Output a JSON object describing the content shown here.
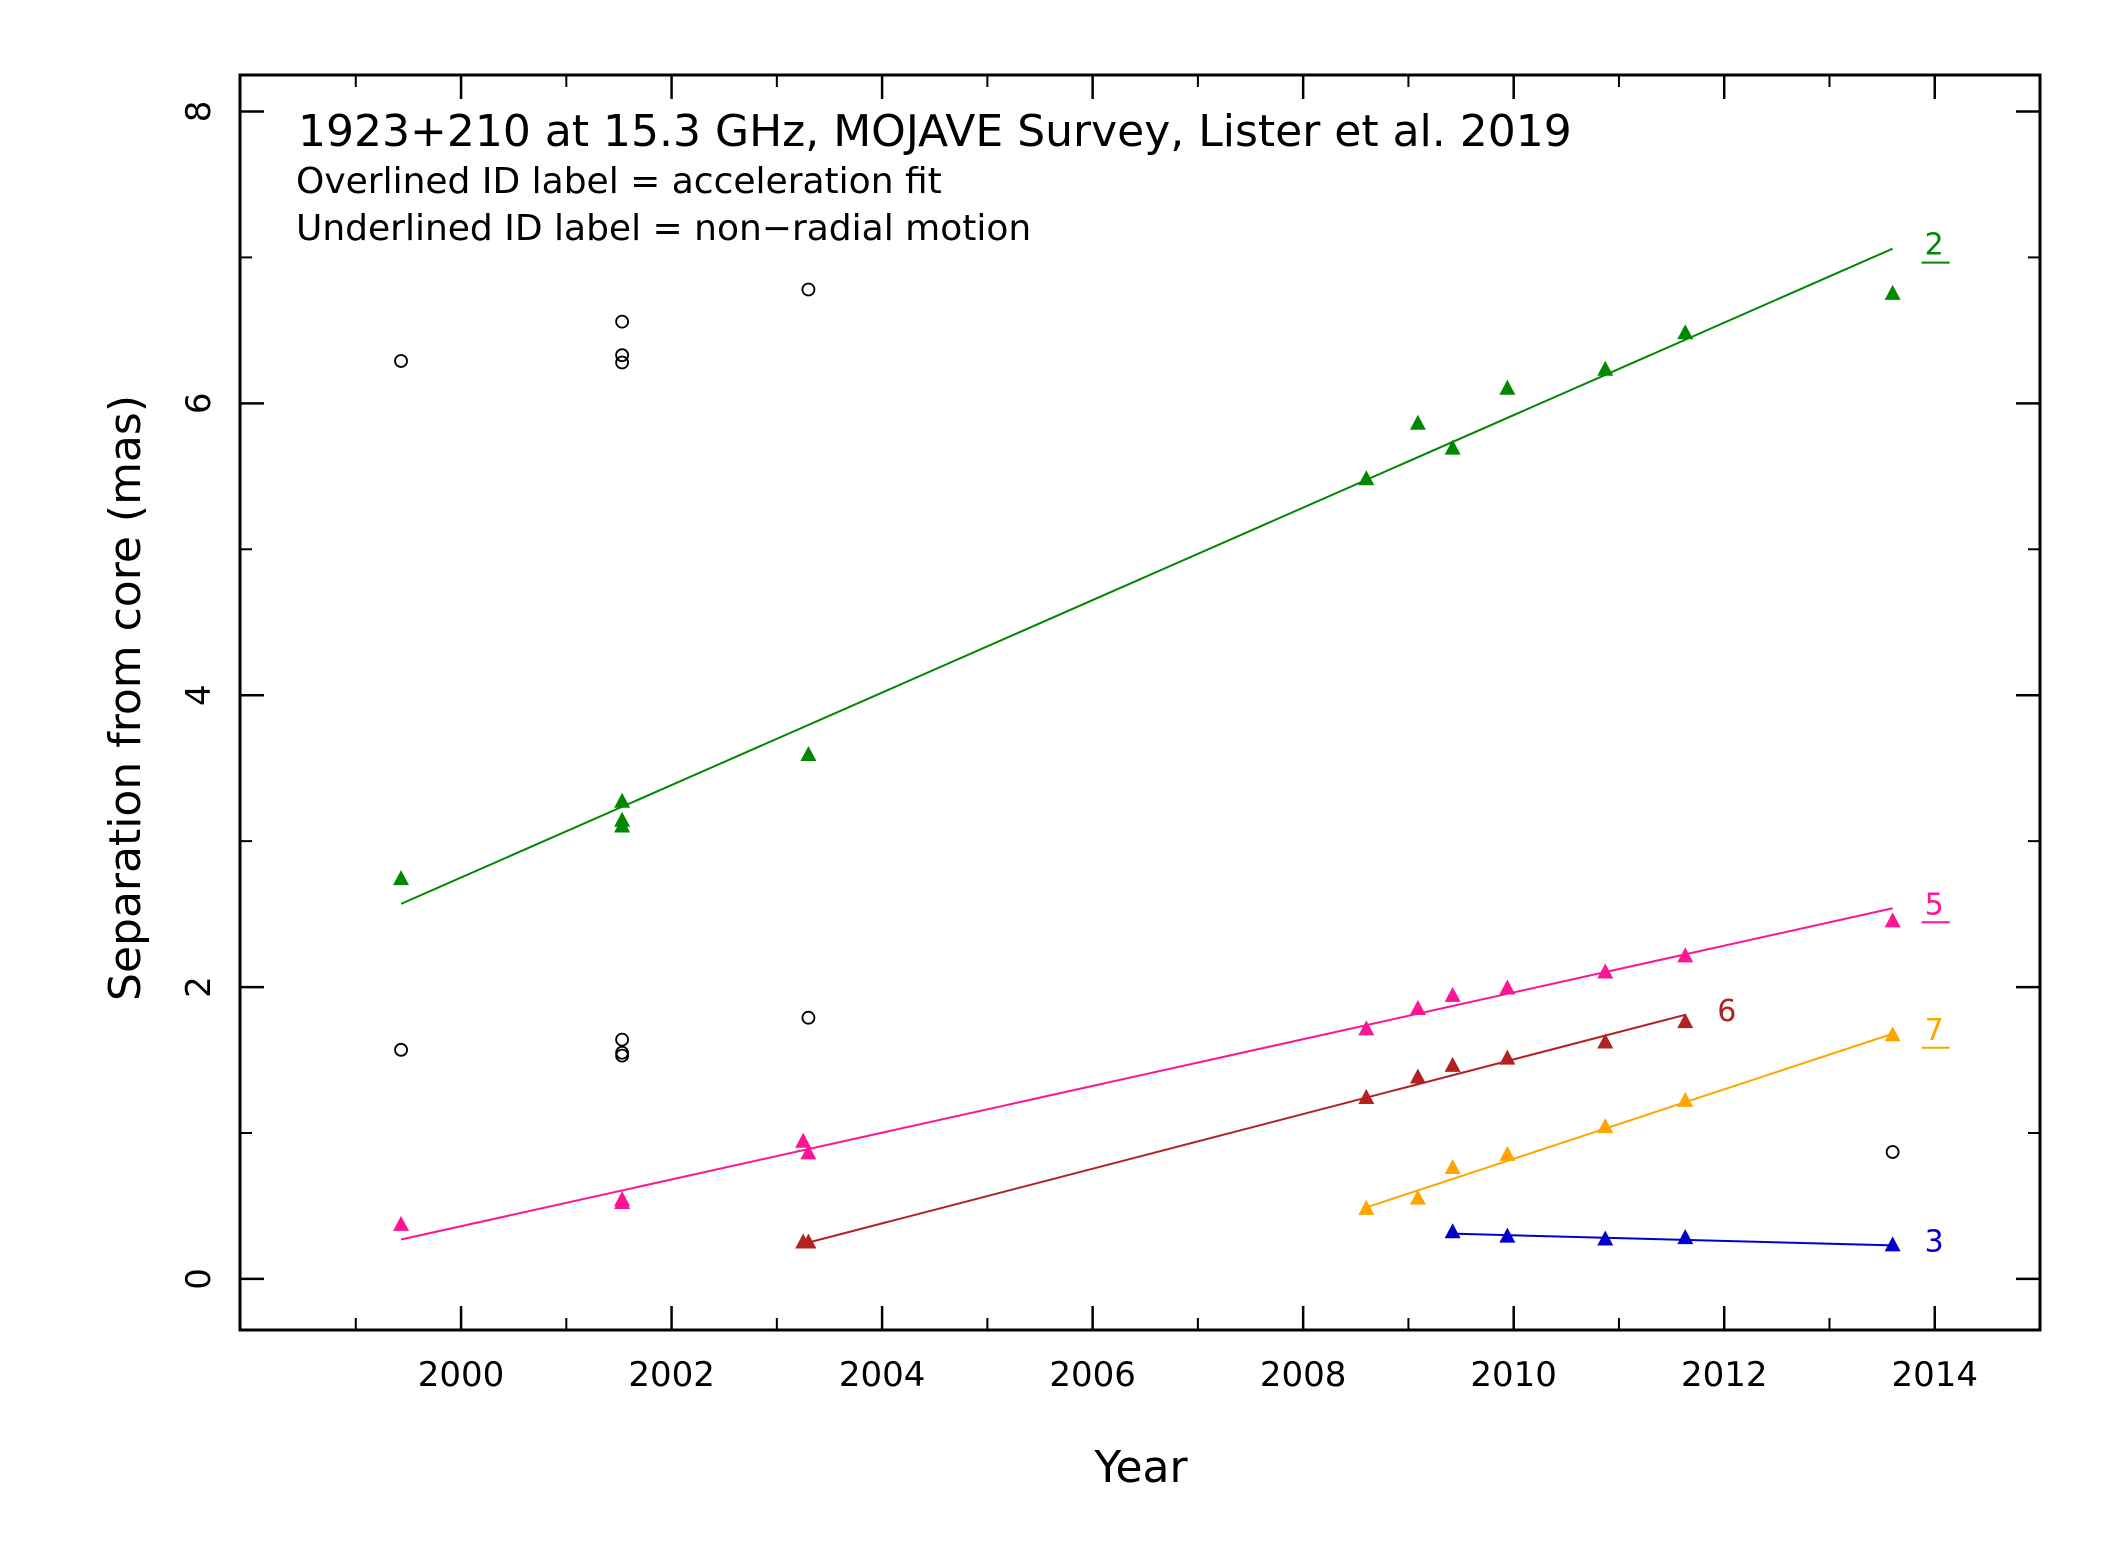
{
  "chart_data": {
    "type": "scatter",
    "title": "1923+210 at 15.3 GHz, MOJAVE Survey, Lister et al. 2019",
    "notes": [
      "Overlined ID label = acceleration fit",
      "Underlined ID label = non−radial motion"
    ],
    "xlabel": "Year",
    "ylabel": "Separation from core (mas)",
    "xlim": [
      1997.9,
      2015.0
    ],
    "ylim": [
      -0.35,
      8.25
    ],
    "x_ticks": [
      2000,
      2002,
      2004,
      2006,
      2008,
      2010,
      2012,
      2014
    ],
    "x_tick_labels": [
      "2000",
      "2002",
      "2004",
      "2006",
      "2008",
      "2010",
      "2012",
      "2014"
    ],
    "y_ticks": [
      0,
      2,
      4,
      6,
      8
    ],
    "y_tick_labels": [
      "0",
      "2",
      "4",
      "6",
      "8"
    ],
    "grid": false,
    "series": [
      {
        "name": "2",
        "label_style": "underline",
        "color": "#008800",
        "marker": "triangle",
        "points": [
          [
            1999.43,
            2.74
          ],
          [
            2001.53,
            3.27
          ],
          [
            2001.53,
            3.14
          ],
          [
            2001.53,
            3.1
          ],
          [
            2003.3,
            3.59
          ],
          [
            2008.6,
            5.48
          ],
          [
            2009.09,
            5.86
          ],
          [
            2009.42,
            5.69
          ],
          [
            2009.94,
            6.1
          ],
          [
            2010.87,
            6.23
          ],
          [
            2011.63,
            6.48
          ],
          [
            2013.6,
            6.75
          ]
        ],
        "fit": [
          [
            1999.43,
            2.57
          ],
          [
            2013.6,
            7.06
          ]
        ]
      },
      {
        "name": "5",
        "label_style": "underline",
        "color": "#ff1493",
        "marker": "triangle",
        "points": [
          [
            1999.43,
            0.37
          ],
          [
            2001.53,
            0.54
          ],
          [
            2001.53,
            0.52
          ],
          [
            2003.25,
            0.94
          ],
          [
            2003.3,
            0.86
          ],
          [
            2008.6,
            1.71
          ],
          [
            2009.09,
            1.85
          ],
          [
            2009.42,
            1.94
          ],
          [
            2009.94,
            1.99
          ],
          [
            2010.87,
            2.1
          ],
          [
            2011.63,
            2.21
          ],
          [
            2013.6,
            2.45
          ]
        ],
        "fit": [
          [
            1999.43,
            0.27
          ],
          [
            2013.6,
            2.54
          ]
        ]
      },
      {
        "name": "6",
        "label_style": "plain",
        "color": "#b22222",
        "marker": "triangle",
        "points": [
          [
            2003.25,
            0.25
          ],
          [
            2003.3,
            0.25
          ],
          [
            2008.6,
            1.24
          ],
          [
            2009.09,
            1.38
          ],
          [
            2009.42,
            1.46
          ],
          [
            2009.94,
            1.51
          ],
          [
            2010.87,
            1.62
          ],
          [
            2011.63,
            1.76
          ]
        ],
        "fit": [
          [
            2003.25,
            0.24
          ],
          [
            2011.63,
            1.81
          ]
        ]
      },
      {
        "name": "7",
        "label_style": "underline",
        "color": "#ffa500",
        "marker": "triangle",
        "points": [
          [
            2008.6,
            0.48
          ],
          [
            2009.09,
            0.55
          ],
          [
            2009.42,
            0.76
          ],
          [
            2009.94,
            0.85
          ],
          [
            2010.87,
            1.04
          ],
          [
            2011.63,
            1.22
          ],
          [
            2013.6,
            1.67
          ]
        ],
        "fit": [
          [
            2008.6,
            0.49
          ],
          [
            2013.6,
            1.68
          ]
        ]
      },
      {
        "name": "3",
        "label_style": "plain",
        "color": "#0000cc",
        "marker": "triangle",
        "points": [
          [
            2009.42,
            0.32
          ],
          [
            2009.94,
            0.29
          ],
          [
            2010.87,
            0.27
          ],
          [
            2011.63,
            0.28
          ],
          [
            2013.6,
            0.23
          ]
        ],
        "fit": [
          [
            2009.42,
            0.31
          ],
          [
            2013.6,
            0.23
          ]
        ]
      },
      {
        "name": "",
        "color": "#000000",
        "marker": "open-circle",
        "points": [
          [
            1999.43,
            6.29
          ],
          [
            2001.53,
            6.56
          ],
          [
            2001.53,
            6.33
          ],
          [
            2001.53,
            6.28
          ],
          [
            2003.3,
            6.78
          ],
          [
            1999.43,
            1.57
          ],
          [
            2001.53,
            1.64
          ],
          [
            2001.53,
            1.55
          ],
          [
            2001.53,
            1.53
          ],
          [
            2003.3,
            1.79
          ],
          [
            2013.6,
            0.87
          ]
        ]
      }
    ]
  }
}
